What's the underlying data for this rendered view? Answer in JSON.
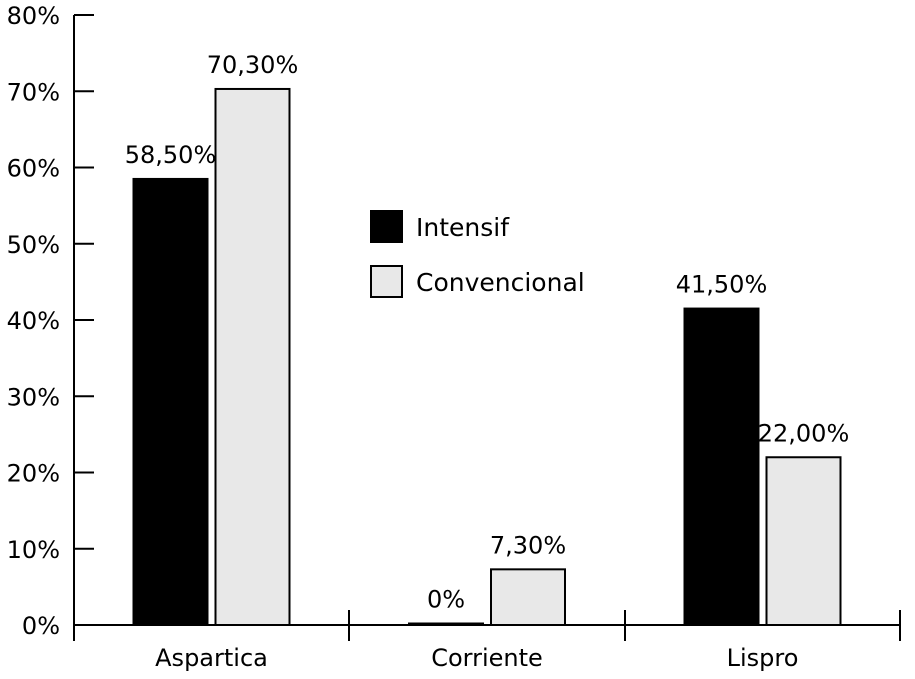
{
  "chart_data": {
    "type": "bar",
    "categories": [
      "Aspartica",
      "Corriente",
      "Lispro"
    ],
    "series": [
      {
        "name": "Intensif",
        "values": [
          58.5,
          0,
          41.5
        ],
        "labels": [
          "58,50%",
          "0%",
          "41,50%"
        ],
        "color": "#000000"
      },
      {
        "name": "Convencional",
        "values": [
          70.3,
          7.3,
          22.0
        ],
        "labels": [
          "70,30%",
          "7,30%",
          "22,00%"
        ],
        "color": "#e8e8e8"
      }
    ],
    "ylim": [
      0,
      80
    ],
    "yticks": [
      0,
      10,
      20,
      30,
      40,
      50,
      60,
      70,
      80
    ],
    "ytick_labels": [
      "0%",
      "10%",
      "20%",
      "30%",
      "40%",
      "50%",
      "60%",
      "70%",
      "80%"
    ],
    "title": "",
    "xlabel": "",
    "ylabel": "",
    "grid": false,
    "legend_position": "center"
  }
}
